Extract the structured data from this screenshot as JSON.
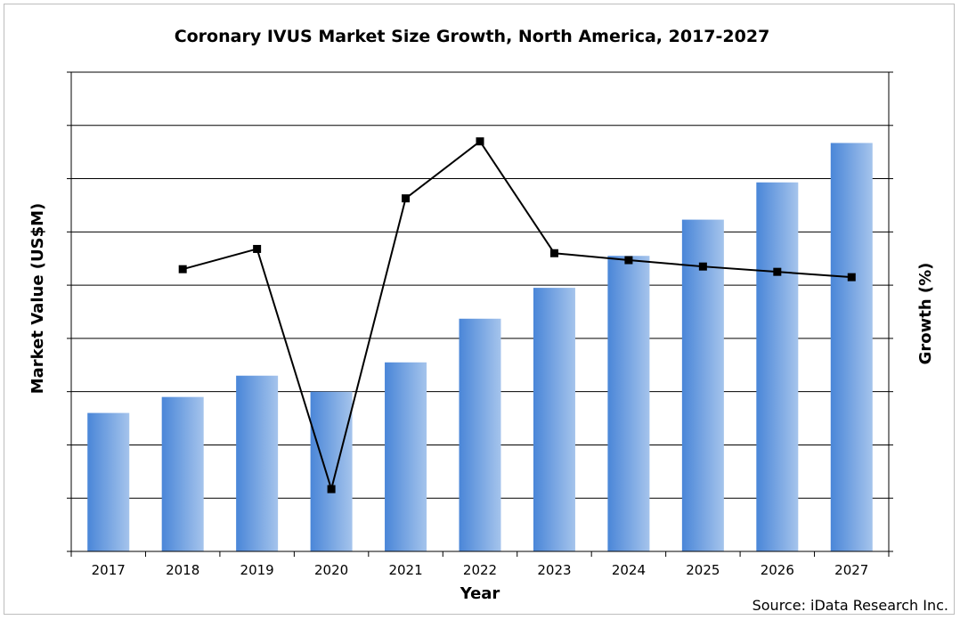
{
  "chart_data": {
    "type": "bar",
    "title": "Coronary IVUS Market Size Growth, North America, 2017-2027",
    "xlabel": "Year",
    "ylabel": "Market Value (US$M)",
    "y2label": "Growth (%)",
    "source": "Source: iData Research Inc.",
    "categories": [
      "2017",
      "2018",
      "2019",
      "2020",
      "2021",
      "2022",
      "2023",
      "2024",
      "2025",
      "2026",
      "2027"
    ],
    "ylim": [
      0,
      9
    ],
    "y2lim": [
      0,
      9
    ],
    "grid": true,
    "series": [
      {
        "type": "bar",
        "axis": "left",
        "values": [
          2.6,
          2.9,
          3.3,
          3.0,
          3.55,
          4.37,
          4.95,
          5.55,
          6.23,
          6.93,
          7.67
        ]
      },
      {
        "type": "line",
        "axis": "right",
        "marker": "square",
        "values": [
          null,
          5.3,
          5.68,
          1.17,
          6.63,
          7.7,
          5.6,
          5.47,
          5.35,
          5.25,
          5.15
        ]
      }
    ],
    "colors": {
      "bar_left": "#4a86d8",
      "bar_right": "#a5c4ec",
      "line": "#000000",
      "grid": "#000000"
    }
  }
}
